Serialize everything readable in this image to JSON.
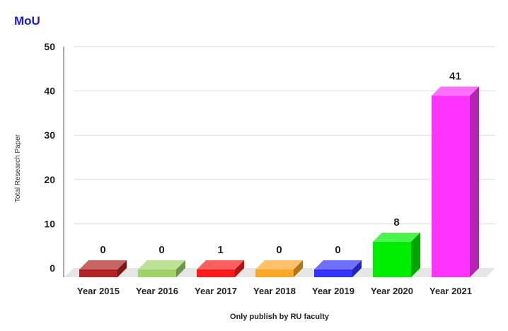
{
  "chart_data": {
    "type": "bar",
    "title": "MoU",
    "categories": [
      "Year 2015",
      "Year 2016",
      "Year 2017",
      "Year 2018",
      "Year 2019",
      "Year 2020",
      "Year 2021"
    ],
    "values": [
      0,
      0,
      1,
      0,
      0,
      8,
      41
    ],
    "data_labels": [
      "0",
      "0",
      "1",
      "0",
      "0",
      "8",
      "41"
    ],
    "colors": [
      "#b22222",
      "#a0d468",
      "#ff1a1a",
      "#ffa726",
      "#3333ff",
      "#00ee00",
      "#ff33ff"
    ],
    "xlabel": "Only publish by RU faculty",
    "ylabel": "Total Research Paper",
    "ylim": [
      0,
      50
    ],
    "yticks": [
      "0",
      "10",
      "20",
      "30",
      "40",
      "50"
    ],
    "grid": true,
    "legend": "none",
    "style": "3d"
  }
}
